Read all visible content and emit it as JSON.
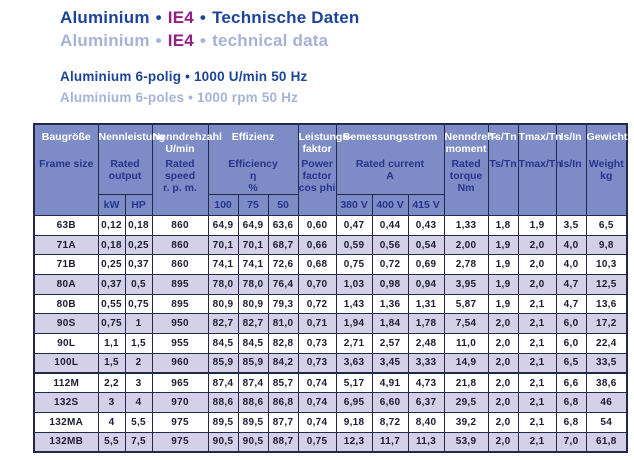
{
  "page": {
    "bullet": "•",
    "title_de": {
      "part1": "Aluminium",
      "ie": "IE4",
      "part2": "Technische Daten"
    },
    "title_en": {
      "part1": "Aluminium",
      "ie": "IE4",
      "part2": "technical data"
    },
    "subtitle_de": "Aluminium 6-polig • 1000 U/min 50 Hz",
    "subtitle_en": "Aluminium 6-poles • 1000 rpm 50 Hz"
  },
  "colors": {
    "title_blue": "#1c4498",
    "title_light_blue": "#a7b2d9",
    "ie4_purple": "#931e87",
    "table_header_bg": "#7d8cc6",
    "table_header_de_text": "#ffffff",
    "table_header_en_text": "#27348c",
    "row_stripe": "#d3d0e7",
    "data_text": "#1d1c32",
    "border": "#23284a"
  },
  "table": {
    "columns": [
      {
        "de": "Baugröße",
        "en": "Frame size"
      },
      {
        "de": "Nennleistung",
        "en": "Rated output",
        "subs": [
          "kW",
          "HP"
        ]
      },
      {
        "de": "Nenndrehzahl\nU/min",
        "en": "Rated speed\nr. p. m."
      },
      {
        "de": "Effizienz",
        "en": "Efficiency\nη\n%",
        "subs": [
          "100",
          "75",
          "50"
        ]
      },
      {
        "de": "Leistungs-\nfaktor",
        "en": "Power\nfactor\ncos phi"
      },
      {
        "de": "Bemessungsstrom",
        "en": "Rated current\nA",
        "subs": [
          "380 V",
          "400 V",
          "415 V"
        ]
      },
      {
        "de": "Nenndreh-\nmoment",
        "en": "Rated\ntorque\nNm"
      },
      {
        "de": "Ts/Tn",
        "en": "Ts/Tn"
      },
      {
        "de": "Tmax/Tn",
        "en": "Tmax/Tn"
      },
      {
        "de": "Is/In",
        "en": "Is/In"
      },
      {
        "de": "Gewicht",
        "en": "Weight\nkg"
      }
    ],
    "rows": [
      [
        "63B",
        "0,12",
        "0,18",
        "860",
        "64,9",
        "64,9",
        "63,6",
        "0,60",
        "0,47",
        "0,44",
        "0,43",
        "1,33",
        "1,8",
        "1,9",
        "3,5",
        "6,5"
      ],
      [
        "71A",
        "0,18",
        "0,25",
        "860",
        "70,1",
        "70,1",
        "68,7",
        "0,66",
        "0,59",
        "0,56",
        "0,54",
        "2,00",
        "1,9",
        "2,0",
        "4,0",
        "9,8"
      ],
      [
        "71B",
        "0,25",
        "0,37",
        "860",
        "74,1",
        "74,1",
        "72,6",
        "0,68",
        "0,75",
        "0,72",
        "0,69",
        "2,78",
        "1,9",
        "2,0",
        "4,0",
        "10,3"
      ],
      [
        "80A",
        "0,37",
        "0,5",
        "895",
        "78,0",
        "78,0",
        "76,4",
        "0,70",
        "1,03",
        "0,98",
        "0,94",
        "3,95",
        "1,9",
        "2,0",
        "4,7",
        "12,5"
      ],
      [
        "80B",
        "0,55",
        "0,75",
        "895",
        "80,9",
        "80,9",
        "79,3",
        "0,72",
        "1,43",
        "1,36",
        "1,31",
        "5,87",
        "1,9",
        "2,1",
        "4,7",
        "13,6"
      ],
      [
        "90S",
        "0,75",
        "1",
        "950",
        "82,7",
        "82,7",
        "81,0",
        "0,71",
        "1,94",
        "1,84",
        "1,78",
        "7,54",
        "2,0",
        "2,1",
        "6,0",
        "17,2"
      ],
      [
        "90L",
        "1,1",
        "1,5",
        "955",
        "84,5",
        "84,5",
        "82,8",
        "0,73",
        "2,71",
        "2,57",
        "2,48",
        "11,0",
        "2,0",
        "2,1",
        "6,0",
        "22,4"
      ],
      [
        "100L",
        "1,5",
        "2",
        "960",
        "85,9",
        "85,9",
        "84,2",
        "0,73",
        "3,63",
        "3,45",
        "3,33",
        "14,9",
        "2,0",
        "2,1",
        "6,5",
        "33,5"
      ],
      [
        "112M",
        "2,2",
        "3",
        "965",
        "87,4",
        "87,4",
        "85,7",
        "0,74",
        "5,17",
        "4,91",
        "4,73",
        "21,8",
        "2,0",
        "2,1",
        "6,6",
        "38,6"
      ],
      [
        "132S",
        "3",
        "4",
        "970",
        "88,6",
        "88,6",
        "86,8",
        "0,74",
        "6,95",
        "6,60",
        "6,37",
        "29,5",
        "2,0",
        "2,1",
        "6,8",
        "46"
      ],
      [
        "132MA",
        "4",
        "5,5",
        "975",
        "89,5",
        "89,5",
        "87,7",
        "0,74",
        "9,18",
        "8,72",
        "8,40",
        "39,2",
        "2,0",
        "2,1",
        "6,8",
        "54"
      ],
      [
        "132MB",
        "5,5",
        "7,5",
        "975",
        "90,5",
        "90,5",
        "88,7",
        "0,75",
        "12,3",
        "11,7",
        "11,3",
        "53,9",
        "2,0",
        "2,1",
        "7,0",
        "61,8"
      ]
    ]
  }
}
